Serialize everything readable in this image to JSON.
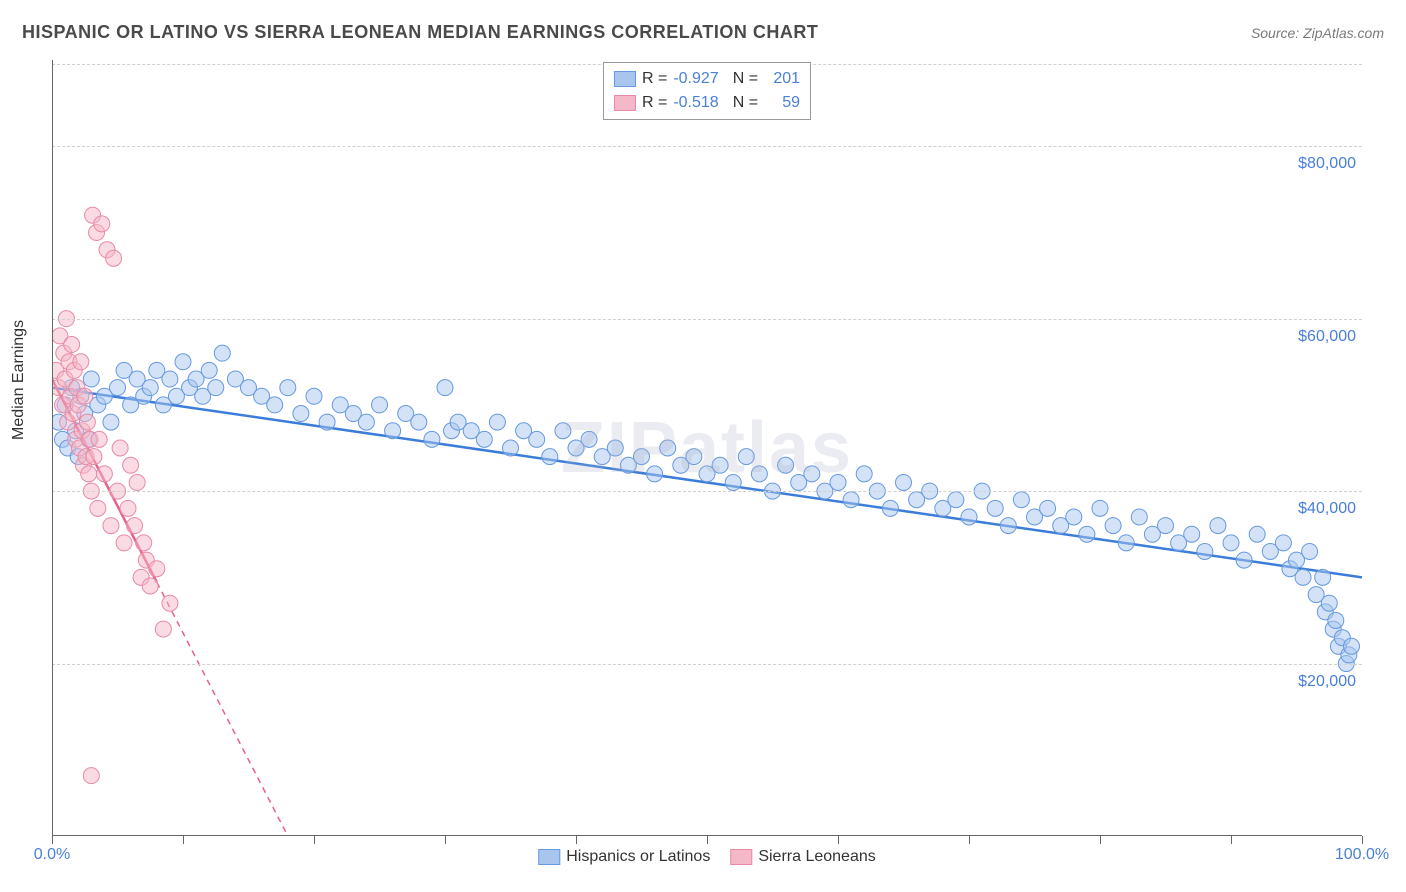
{
  "title": "HISPANIC OR LATINO VS SIERRA LEONEAN MEDIAN EARNINGS CORRELATION CHART",
  "source": "Source: ZipAtlas.com",
  "ylabel": "Median Earnings",
  "watermark": "ZIPatlas",
  "chart": {
    "type": "scatter",
    "xlim": [
      0,
      100
    ],
    "ylim": [
      0,
      90000
    ],
    "xticks": [
      0,
      10,
      20,
      30,
      40,
      50,
      60,
      70,
      80,
      90,
      100
    ],
    "xticklabels": {
      "0": "0.0%",
      "100": "100.0%"
    },
    "ygrid": [
      20000,
      40000,
      60000,
      80000
    ],
    "yticklabels": {
      "20000": "$20,000",
      "40000": "$40,000",
      "60000": "$60,000",
      "80000": "$80,000"
    },
    "background_color": "#ffffff",
    "grid_color": "#d0d0d0",
    "axis_color": "#666666",
    "tick_length": 8,
    "marker_radius": 8,
    "marker_opacity": 0.5,
    "line_width": 2.5,
    "series": [
      {
        "name": "Hispanics or Latinos",
        "color_fill": "#a8c5ed",
        "color_stroke": "#6699e0",
        "line_color": "#3b7dd8",
        "R": "-0.927",
        "N": "201",
        "trend": {
          "x1": 0,
          "y1": 52000,
          "x2": 100,
          "y2": 30000,
          "dash": false
        },
        "points": [
          [
            0.5,
            48000
          ],
          [
            0.8,
            46000
          ],
          [
            1.0,
            50000
          ],
          [
            1.2,
            45000
          ],
          [
            1.5,
            52000
          ],
          [
            1.8,
            47000
          ],
          [
            2.0,
            44000
          ],
          [
            2.2,
            51000
          ],
          [
            2.5,
            49000
          ],
          [
            2.8,
            46000
          ],
          [
            3.0,
            53000
          ],
          [
            3.5,
            50000
          ],
          [
            4.0,
            51000
          ],
          [
            4.5,
            48000
          ],
          [
            5.0,
            52000
          ],
          [
            5.5,
            54000
          ],
          [
            6.0,
            50000
          ],
          [
            6.5,
            53000
          ],
          [
            7.0,
            51000
          ],
          [
            7.5,
            52000
          ],
          [
            8.0,
            54000
          ],
          [
            8.5,
            50000
          ],
          [
            9.0,
            53000
          ],
          [
            9.5,
            51000
          ],
          [
            10.0,
            55000
          ],
          [
            10.5,
            52000
          ],
          [
            11.0,
            53000
          ],
          [
            11.5,
            51000
          ],
          [
            12.0,
            54000
          ],
          [
            12.5,
            52000
          ],
          [
            13.0,
            56000
          ],
          [
            14.0,
            53000
          ],
          [
            15.0,
            52000
          ],
          [
            16.0,
            51000
          ],
          [
            17.0,
            50000
          ],
          [
            18.0,
            52000
          ],
          [
            19.0,
            49000
          ],
          [
            20.0,
            51000
          ],
          [
            21.0,
            48000
          ],
          [
            22.0,
            50000
          ],
          [
            23.0,
            49000
          ],
          [
            24.0,
            48000
          ],
          [
            25.0,
            50000
          ],
          [
            26.0,
            47000
          ],
          [
            27.0,
            49000
          ],
          [
            28.0,
            48000
          ],
          [
            29.0,
            46000
          ],
          [
            30.0,
            52000
          ],
          [
            30.5,
            47000
          ],
          [
            31.0,
            48000
          ],
          [
            32.0,
            47000
          ],
          [
            33.0,
            46000
          ],
          [
            34.0,
            48000
          ],
          [
            35.0,
            45000
          ],
          [
            36.0,
            47000
          ],
          [
            37.0,
            46000
          ],
          [
            38.0,
            44000
          ],
          [
            39.0,
            47000
          ],
          [
            40.0,
            45000
          ],
          [
            41.0,
            46000
          ],
          [
            42.0,
            44000
          ],
          [
            43.0,
            45000
          ],
          [
            44.0,
            43000
          ],
          [
            45.0,
            44000
          ],
          [
            46.0,
            42000
          ],
          [
            47.0,
            45000
          ],
          [
            48.0,
            43000
          ],
          [
            49.0,
            44000
          ],
          [
            50.0,
            42000
          ],
          [
            51.0,
            43000
          ],
          [
            52.0,
            41000
          ],
          [
            53.0,
            44000
          ],
          [
            54.0,
            42000
          ],
          [
            55.0,
            40000
          ],
          [
            56.0,
            43000
          ],
          [
            57.0,
            41000
          ],
          [
            58.0,
            42000
          ],
          [
            59.0,
            40000
          ],
          [
            60.0,
            41000
          ],
          [
            61.0,
            39000
          ],
          [
            62.0,
            42000
          ],
          [
            63.0,
            40000
          ],
          [
            64.0,
            38000
          ],
          [
            65.0,
            41000
          ],
          [
            66.0,
            39000
          ],
          [
            67.0,
            40000
          ],
          [
            68.0,
            38000
          ],
          [
            69.0,
            39000
          ],
          [
            70.0,
            37000
          ],
          [
            71.0,
            40000
          ],
          [
            72.0,
            38000
          ],
          [
            73.0,
            36000
          ],
          [
            74.0,
            39000
          ],
          [
            75.0,
            37000
          ],
          [
            76.0,
            38000
          ],
          [
            77.0,
            36000
          ],
          [
            78.0,
            37000
          ],
          [
            79.0,
            35000
          ],
          [
            80.0,
            38000
          ],
          [
            81.0,
            36000
          ],
          [
            82.0,
            34000
          ],
          [
            83.0,
            37000
          ],
          [
            84.0,
            35000
          ],
          [
            85.0,
            36000
          ],
          [
            86.0,
            34000
          ],
          [
            87.0,
            35000
          ],
          [
            88.0,
            33000
          ],
          [
            89.0,
            36000
          ],
          [
            90.0,
            34000
          ],
          [
            91.0,
            32000
          ],
          [
            92.0,
            35000
          ],
          [
            93.0,
            33000
          ],
          [
            94.0,
            34000
          ],
          [
            94.5,
            31000
          ],
          [
            95.0,
            32000
          ],
          [
            95.5,
            30000
          ],
          [
            96.0,
            33000
          ],
          [
            96.5,
            28000
          ],
          [
            97.0,
            30000
          ],
          [
            97.2,
            26000
          ],
          [
            97.5,
            27000
          ],
          [
            97.8,
            24000
          ],
          [
            98.0,
            25000
          ],
          [
            98.2,
            22000
          ],
          [
            98.5,
            23000
          ],
          [
            98.8,
            20000
          ],
          [
            99.0,
            21000
          ],
          [
            99.2,
            22000
          ]
        ]
      },
      {
        "name": "Sierra Leoneans",
        "color_fill": "#f5b8c8",
        "color_stroke": "#e88aa5",
        "line_color": "#e86088",
        "R": "-0.518",
        "N": "59",
        "trend": {
          "x1": 0,
          "y1": 53000,
          "x2": 18,
          "y2": 0,
          "dash_after_x": 8
        },
        "points": [
          [
            0.3,
            54000
          ],
          [
            0.5,
            52000
          ],
          [
            0.6,
            58000
          ],
          [
            0.8,
            50000
          ],
          [
            0.9,
            56000
          ],
          [
            1.0,
            53000
          ],
          [
            1.1,
            60000
          ],
          [
            1.2,
            48000
          ],
          [
            1.3,
            55000
          ],
          [
            1.4,
            51000
          ],
          [
            1.5,
            57000
          ],
          [
            1.6,
            49000
          ],
          [
            1.7,
            54000
          ],
          [
            1.8,
            46000
          ],
          [
            1.9,
            52000
          ],
          [
            2.0,
            50000
          ],
          [
            2.1,
            45000
          ],
          [
            2.2,
            55000
          ],
          [
            2.3,
            47000
          ],
          [
            2.4,
            43000
          ],
          [
            2.5,
            51000
          ],
          [
            2.6,
            44000
          ],
          [
            2.7,
            48000
          ],
          [
            2.8,
            42000
          ],
          [
            2.9,
            46000
          ],
          [
            3.0,
            40000
          ],
          [
            3.1,
            72000
          ],
          [
            3.2,
            44000
          ],
          [
            3.4,
            70000
          ],
          [
            3.5,
            38000
          ],
          [
            3.6,
            46000
          ],
          [
            3.8,
            71000
          ],
          [
            4.0,
            42000
          ],
          [
            4.2,
            68000
          ],
          [
            4.5,
            36000
          ],
          [
            4.7,
            67000
          ],
          [
            5.0,
            40000
          ],
          [
            5.2,
            45000
          ],
          [
            5.5,
            34000
          ],
          [
            5.8,
            38000
          ],
          [
            6.0,
            43000
          ],
          [
            6.3,
            36000
          ],
          [
            6.5,
            41000
          ],
          [
            6.8,
            30000
          ],
          [
            7.0,
            34000
          ],
          [
            7.2,
            32000
          ],
          [
            7.5,
            29000
          ],
          [
            8.0,
            31000
          ],
          [
            8.5,
            24000
          ],
          [
            9.0,
            27000
          ],
          [
            3.0,
            7000
          ]
        ]
      }
    ]
  },
  "legend_bottom": [
    {
      "label": "Hispanics or Latinos",
      "fill": "#a8c5ed",
      "stroke": "#6699e0"
    },
    {
      "label": "Sierra Leoneans",
      "fill": "#f5b8c8",
      "stroke": "#e88aa5"
    }
  ]
}
